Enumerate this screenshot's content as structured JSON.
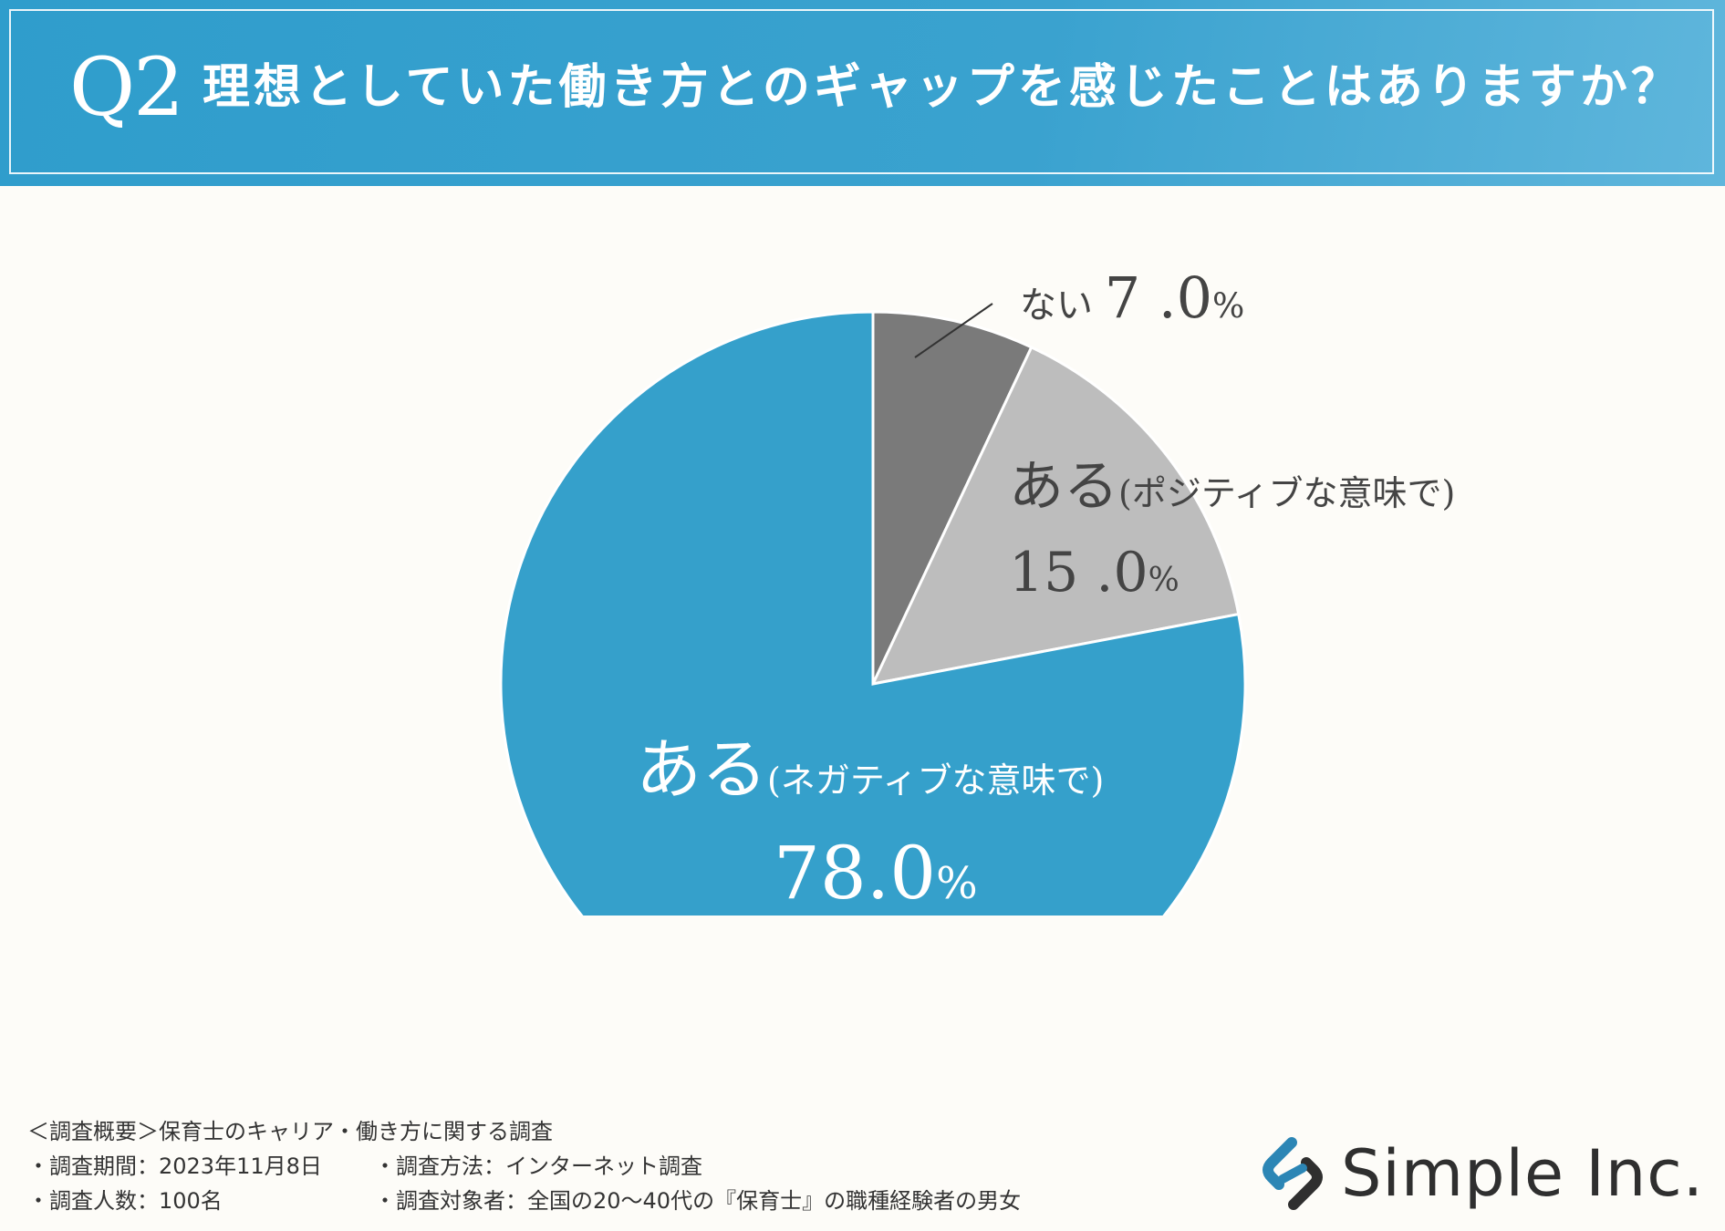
{
  "header": {
    "q_number": "Q2",
    "question": "理想としていた働き方とのギャップを感じたことはありますか？"
  },
  "chart_data": {
    "type": "pie",
    "title": "理想としていた働き方とのギャップを感じたことはありますか？",
    "slices": [
      {
        "name": "ない",
        "value": 7.0,
        "value_label": "7 .0%",
        "color": "#7a7a7a"
      },
      {
        "name": "ある",
        "qualifier": "（ポジティブな意味で）",
        "value": 15.0,
        "value_label": "15 .0%",
        "color": "#bdbdbd"
      },
      {
        "name": "ある",
        "qualifier": "（ネガティブな意味で）",
        "value": 78.0,
        "value_label": "78.0%",
        "color": "#35a0cb"
      }
    ],
    "start": "12 o'clock",
    "direction": "clockwise"
  },
  "labels": {
    "none_name": "ない",
    "none_num": "7 .0",
    "pos_name": "ある",
    "pos_sub": "(ポジティブな意味で)",
    "pos_num": "15 .0",
    "neg_name": "ある",
    "neg_sub": "(ネガティブな意味で)",
    "neg_num": "78.0",
    "percent_sign": "%"
  },
  "footer": {
    "overview": "＜調査概要＞保育士のキャリア・働き方に関する調査",
    "period": "・調査期間：2023年11月8日",
    "method": "・調査方法：インターネット調査",
    "count": "・調査人数：100名",
    "target": "・調査対象者：全国の20〜40代の『保育士』の職種経験者の男女"
  },
  "logo": {
    "text": "Simple Inc.",
    "icon": "chain-link-icon",
    "colors": [
      "#2c86b5",
      "#2f2f2f"
    ]
  }
}
